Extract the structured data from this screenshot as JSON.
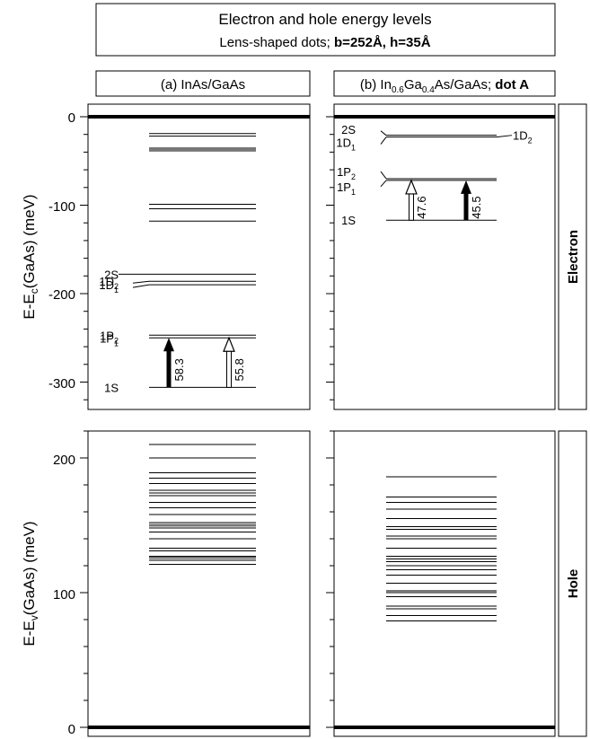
{
  "title": {
    "line1": "Electron and hole energy levels",
    "line2_prefix": "Lens-shaped dots; ",
    "line2_bold": "b=252Å, h=35Å"
  },
  "panels": {
    "a_label": "(a) InAs/GaAs",
    "b_label": {
      "pre": "(b) In",
      "sub1": "0.6",
      "mid": "Ga",
      "sub2": "0.4",
      "post": "As/GaAs; ",
      "bold": "dot A"
    }
  },
  "side_labels": {
    "electron": "Electron",
    "hole": "Hole"
  },
  "axes": {
    "electron_ylabel": {
      "pre": "E-E",
      "sub": "c",
      "post": "(GaAs) (meV)"
    },
    "hole_ylabel": {
      "pre": "E-E",
      "sub": "v",
      "post": "(GaAs) (meV)"
    },
    "electron_ticks": [
      "0",
      "-100",
      "-200",
      "-300"
    ],
    "hole_ticks": [
      "200",
      "100",
      "0"
    ]
  },
  "chart_data": [
    {
      "type": "energy-level-diagram",
      "panel": "(a) InAs/GaAs",
      "carrier": "Electron",
      "ylim": [
        -330,
        2
      ],
      "levels": [
        0,
        -19,
        -22,
        -36,
        -38,
        -99,
        -104,
        -118,
        -178,
        -186,
        -190,
        -247,
        -250,
        -306
      ],
      "bold_levels": [
        0
      ],
      "gray_levels": [
        -36,
        -38
      ],
      "level_labels": [
        {
          "text": "2S",
          "y": -178
        },
        {
          "text": "1D",
          "sub": "2",
          "y": -186
        },
        {
          "text": "1D",
          "sub": "1",
          "y": -190
        },
        {
          "text": "1P",
          "sub": "2",
          "y": -247
        },
        {
          "text": "1P",
          "sub": "1",
          "y": -250
        },
        {
          "text": "1S",
          "y": -306
        }
      ],
      "transitions": [
        {
          "from": -306,
          "to": -250,
          "value": "58.3",
          "filled": true
        },
        {
          "from": -306,
          "to": -250,
          "value": "55.8",
          "filled": false
        }
      ]
    },
    {
      "type": "energy-level-diagram",
      "panel": "(b) In0.6Ga0.4As/GaAs; dot A",
      "carrier": "Electron",
      "ylim": [
        -330,
        2
      ],
      "levels": [
        0,
        -21,
        -23,
        -70,
        -72,
        -117
      ],
      "bold_levels": [
        0
      ],
      "gray_levels": [],
      "level_labels": [
        {
          "text": "2S",
          "y": -14
        },
        {
          "text": "1D",
          "sub": "1",
          "y": -29
        },
        {
          "text": "1D",
          "sub": "2",
          "y": -21,
          "side": "right"
        },
        {
          "text": "1P",
          "sub": "2",
          "y": -62
        },
        {
          "text": "1P",
          "sub": "1",
          "y": -79
        },
        {
          "text": "1S",
          "y": -117
        }
      ],
      "transitions": [
        {
          "from": -117,
          "to": -72,
          "value": "47.6",
          "filled": false
        },
        {
          "from": -117,
          "to": -72,
          "value": "45.5",
          "filled": true
        }
      ]
    },
    {
      "type": "energy-level-diagram",
      "panel": "(a) InAs/GaAs",
      "carrier": "Hole",
      "ylim": [
        -2,
        220
      ],
      "levels": [
        0,
        121,
        124,
        126,
        127,
        131,
        133,
        140,
        145,
        148,
        150,
        152,
        158,
        163,
        167,
        172,
        174,
        176,
        181,
        185,
        189,
        200,
        210
      ],
      "bold_levels": [
        0
      ],
      "gray_levels": [
        150,
        126
      ]
    },
    {
      "type": "energy-level-diagram",
      "panel": "(b) In0.6Ga0.4As/GaAs; dot A",
      "carrier": "Hole",
      "ylim": [
        -2,
        220
      ],
      "levels": [
        0,
        79,
        83,
        88,
        90,
        97,
        100,
        101,
        107,
        113,
        117,
        120,
        123,
        125,
        127,
        133,
        140,
        142,
        147,
        149,
        155,
        162,
        167,
        171,
        186
      ],
      "bold_levels": [
        0
      ],
      "gray_levels": [
        89,
        101,
        148
      ]
    }
  ]
}
